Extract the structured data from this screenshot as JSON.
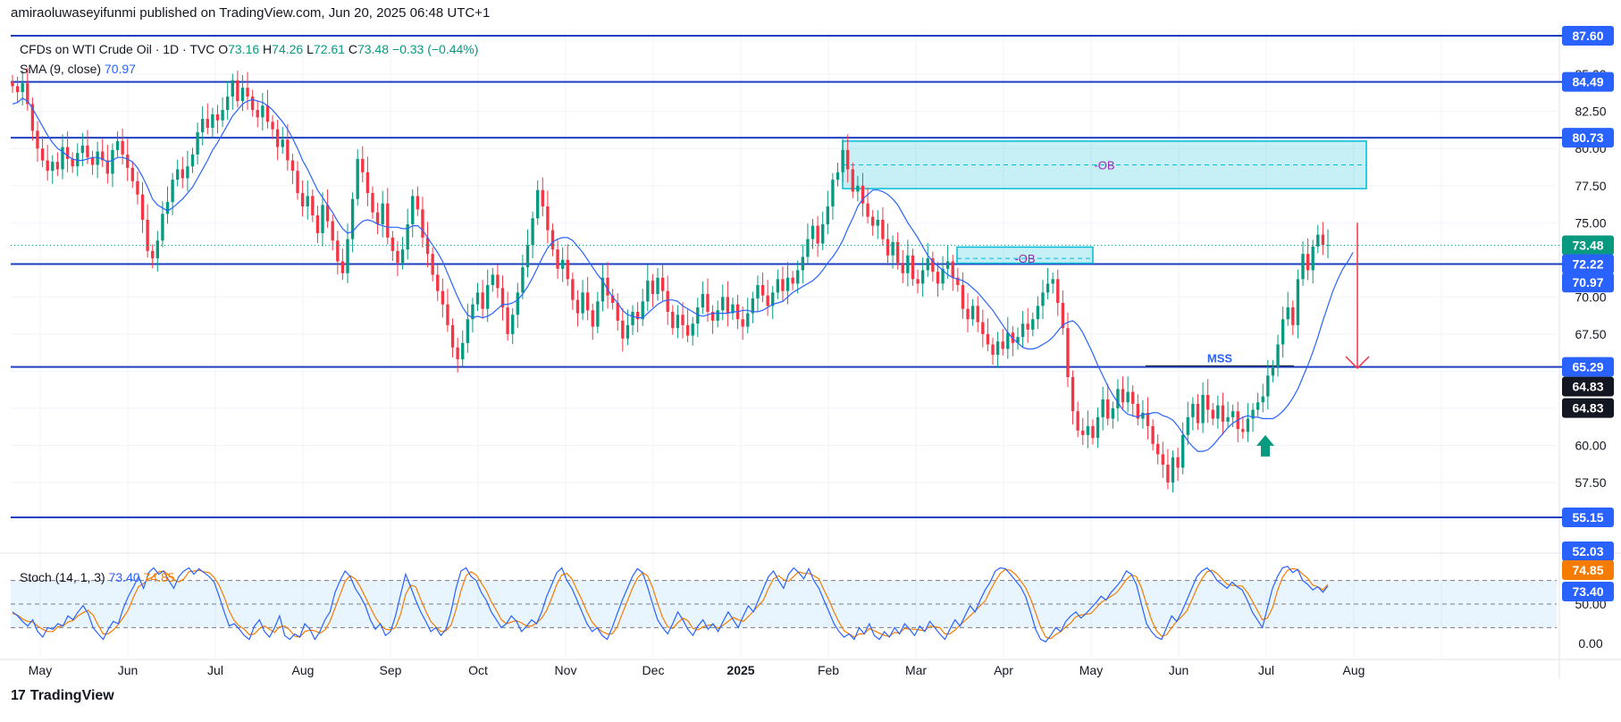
{
  "header": {
    "published": "amiraoluwaseyifunmi published on TradingView.com, Jun 20, 2025 06:48 UTC+1"
  },
  "legend": {
    "symbol": "CFDs on WTI Crude Oil · 1D · TVC",
    "open_label": "O",
    "open": "73.16",
    "high_label": "H",
    "high": "74.26",
    "low_label": "L",
    "low": "72.61",
    "close_label": "C",
    "close": "73.48",
    "change": "−0.33 (−0.44%)",
    "sma_label": "SMA (9, close)",
    "sma_value": "70.97"
  },
  "stoch_legend": {
    "label": "Stoch (14, 1, 3)",
    "k": "73.40",
    "d": "74.85"
  },
  "brand": {
    "logo": "17",
    "name": "TradingView"
  },
  "colors": {
    "up": "#089981",
    "down": "#f23645",
    "sma": "#2962ff",
    "hline": "#1e3fbf",
    "ob": "#00bcd4",
    "stoch_d": "#f57c00"
  },
  "chart_data": {
    "type": "candlestick",
    "ylim": [
      52.03,
      87.6
    ],
    "y_ticks": [
      "85.00",
      "82.50",
      "80.00",
      "77.50",
      "75.00",
      "72.50",
      "70.00",
      "67.50",
      "65.00",
      "62.50",
      "60.00",
      "57.50"
    ],
    "x_ticks": [
      "May",
      "Jun",
      "Jul",
      "Aug",
      "Sep",
      "Oct",
      "Nov",
      "Dec",
      "2025",
      "Feb",
      "Mar",
      "Apr",
      "May",
      "Jun",
      "Jul",
      "Aug"
    ],
    "horizontal_levels": [
      "87.60",
      "84.49",
      "80.73",
      "72.22",
      "65.29",
      "55.15"
    ],
    "price_labels": [
      {
        "text": "87.60",
        "style": "level"
      },
      {
        "text": "84.49",
        "style": "level"
      },
      {
        "text": "80.73",
        "style": "level"
      },
      {
        "text": "73.48",
        "style": "last"
      },
      {
        "text": "72.22",
        "style": "level"
      },
      {
        "text": "70.97",
        "style": "sma"
      },
      {
        "text": "65.29",
        "style": "level"
      },
      {
        "text": "64.83",
        "style": "dark"
      },
      {
        "text": "64.83",
        "style": "dark"
      },
      {
        "text": "55.15",
        "style": "level"
      },
      {
        "text": "52.03",
        "style": "level"
      }
    ],
    "annotations": {
      "ob1": {
        "label": "-OB",
        "top": 80.5,
        "bottom": 77.3,
        "mid": 78.9
      },
      "ob2": {
        "label": "-OB",
        "top": 73.0,
        "bottom": 72.2,
        "mid": 72.6
      },
      "mss": {
        "label": "MSS",
        "level": 65.0
      }
    },
    "closes": [
      84.2,
      83.8,
      84.4,
      83.0,
      81.2,
      80.0,
      79.2,
      78.5,
      79.1,
      78.6,
      80.1,
      79.3,
      78.8,
      79.7,
      80.2,
      79.4,
      78.9,
      79.8,
      79.2,
      78.3,
      79.9,
      80.5,
      79.6,
      78.7,
      77.8,
      76.9,
      75.2,
      73.1,
      72.6,
      73.8,
      75.6,
      76.4,
      77.9,
      78.6,
      78.0,
      78.8,
      79.6,
      81.1,
      82.0,
      81.4,
      82.3,
      81.9,
      82.6,
      83.5,
      84.6,
      83.2,
      84.1,
      83.5,
      82.6,
      82.1,
      82.9,
      81.8,
      81.3,
      80.1,
      80.6,
      79.2,
      78.5,
      77.0,
      76.1,
      76.8,
      75.5,
      74.3,
      76.2,
      75.1,
      73.8,
      72.4,
      71.6,
      73.9,
      76.6,
      79.3,
      78.4,
      77.0,
      75.7,
      74.9,
      76.3,
      74.0,
      73.1,
      72.3,
      73.2,
      74.9,
      76.8,
      75.9,
      74.0,
      72.9,
      71.5,
      70.4,
      69.5,
      68.1,
      66.6,
      65.8,
      66.9,
      68.5,
      69.5,
      70.3,
      69.2,
      70.8,
      71.5,
      70.6,
      69.3,
      67.5,
      68.8,
      70.3,
      72.0,
      73.5,
      75.3,
      77.2,
      76.1,
      74.5,
      73.2,
      71.9,
      72.5,
      71.2,
      69.8,
      68.9,
      70.3,
      69.1,
      68.0,
      69.7,
      71.3,
      70.1,
      69.6,
      68.4,
      67.2,
      68.1,
      69.0,
      68.5,
      69.7,
      71.1,
      70.2,
      71.3,
      70.4,
      69.0,
      67.9,
      68.8,
      68.1,
      67.4,
      68.2,
      69.3,
      70.2,
      69.0,
      68.4,
      69.1,
      70.0,
      68.9,
      69.5,
      68.5,
      68.0,
      68.9,
      69.9,
      70.8,
      70.1,
      69.4,
      70.3,
      71.2,
      70.4,
      71.3,
      70.9,
      71.8,
      72.7,
      73.9,
      74.8,
      73.6,
      74.9,
      76.1,
      77.9,
      78.4,
      79.9,
      78.6,
      77.1,
      77.5,
      76.3,
      75.4,
      74.8,
      75.2,
      73.9,
      72.8,
      73.7,
      72.3,
      71.6,
      72.8,
      71.2,
      70.9,
      71.8,
      72.6,
      71.7,
      70.9,
      71.9,
      72.4,
      71.3,
      70.8,
      69.2,
      68.5,
      69.4,
      68.3,
      67.5,
      66.8,
      66.1,
      67.0,
      66.5,
      67.6,
      66.9,
      67.3,
      68.2,
      67.8,
      68.5,
      69.4,
      70.3,
      70.9,
      71.2,
      69.6,
      67.9,
      64.6,
      62.3,
      61.0,
      60.7,
      61.3,
      60.5,
      61.9,
      63.1,
      61.8,
      62.5,
      63.8,
      62.9,
      63.6,
      62.8,
      61.8,
      62.2,
      61.3,
      60.1,
      59.4,
      58.7,
      57.5,
      59.2,
      58.5,
      60.7,
      61.9,
      62.8,
      61.5,
      63.4,
      62.4,
      61.8,
      62.7,
      61.6,
      61.9,
      62.3,
      61.1,
      60.9,
      61.8,
      62.4,
      62.9,
      63.3,
      64.7,
      65.3,
      66.8,
      68.5,
      69.3,
      68.1,
      71.2,
      72.9,
      71.8,
      73.4,
      74.2,
      73.5,
      73.5
    ],
    "sma": [
      83.0,
      83.1,
      83.4,
      83.2,
      82.7,
      82.1,
      81.5,
      80.9,
      80.4,
      80.0,
      79.8,
      79.5,
      79.3,
      79.2,
      79.2,
      79.3,
      79.4,
      79.4,
      79.3,
      79.1,
      79.2,
      79.4,
      79.4,
      79.3,
      79.1,
      78.7,
      78.1,
      77.4,
      76.6,
      76.2,
      76.0,
      75.8,
      76.0,
      76.3,
      76.6,
      77.0,
      77.4,
      78.0,
      78.6,
      79.2,
      79.9,
      80.4,
      81.0,
      81.6,
      82.2,
      82.6,
      83.0,
      83.2,
      83.3,
      83.2,
      83.1,
      82.9,
      82.6,
      82.2,
      81.8,
      81.3,
      80.7,
      80.0,
      79.2,
      78.6,
      77.9,
      77.2,
      76.7,
      76.2,
      75.7,
      75.1,
      74.6,
      74.3,
      74.4,
      74.8,
      75.1,
      75.2,
      75.1,
      74.9,
      74.8,
      74.7,
      74.7,
      74.7,
      74.6,
      74.6,
      74.8,
      74.8,
      74.5,
      74.0,
      73.5,
      73.0,
      72.4,
      71.6,
      70.8,
      70.0,
      69.3,
      68.8,
      68.6,
      68.7,
      68.6,
      68.7,
      68.9,
      69.2,
      69.5,
      69.5,
      69.6,
      69.8,
      70.2,
      70.7,
      71.3,
      72.0,
      72.7,
      73.3,
      73.7,
      73.9,
      74.0,
      74.0,
      73.8,
      73.4,
      73.0,
      72.5,
      72.0,
      71.5,
      71.1,
      70.5,
      70.0,
      69.6,
      69.1,
      68.8,
      68.7,
      68.6,
      68.6,
      68.9,
      69.2,
      69.5,
      69.7,
      69.8,
      69.8,
      69.7,
      69.4,
      69.2,
      69.0,
      68.8,
      68.7,
      68.8,
      68.9,
      68.9,
      68.9,
      68.9,
      69.0,
      69.0,
      69.1,
      69.1,
      69.0,
      69.0,
      69.1,
      69.3,
      69.5,
      69.6,
      69.7,
      70.0,
      70.3,
      70.5,
      70.7,
      70.9,
      71.1,
      71.4,
      71.8,
      72.3,
      72.7,
      73.2,
      73.8,
      74.6,
      75.3,
      76.1,
      76.6,
      76.9,
      77.2,
      77.2,
      77.1,
      76.9,
      76.6,
      76.2,
      75.6,
      75.0,
      74.5,
      74.0,
      73.4,
      72.8,
      72.4,
      72.1,
      71.8,
      71.5,
      71.3,
      71.2,
      71.1,
      70.9,
      70.6,
      70.3,
      69.9,
      69.5,
      69.1,
      68.6,
      68.1,
      67.6,
      67.2,
      66.9,
      66.6,
      66.5,
      66.5,
      66.6,
      66.8,
      67.0,
      67.3,
      67.7,
      68.1,
      68.3,
      68.4,
      68.1,
      67.6,
      66.9,
      66.2,
      65.4,
      64.7,
      64.0,
      63.4,
      62.9,
      62.4,
      62.1,
      62.0,
      61.9,
      62.1,
      62.1,
      62.2,
      62.2,
      62.0,
      61.9,
      61.7,
      61.3,
      60.8,
      60.3,
      59.9,
      59.6,
      59.6,
      59.7,
      60.0,
      60.4,
      60.8,
      61.2,
      61.5,
      61.7,
      61.9,
      62.0,
      61.9,
      61.9,
      61.8,
      61.8,
      61.8,
      62.0,
      62.3,
      62.7,
      63.2,
      63.8,
      64.6,
      65.4,
      66.3,
      67.3,
      68.4,
      69.4,
      70.4,
      71.2,
      71.9,
      72.4,
      73.0
    ],
    "stoch_k": [
      40,
      35,
      28,
      22,
      30,
      15,
      8,
      20,
      18,
      25,
      22,
      35,
      30,
      40,
      48,
      38,
      20,
      12,
      5,
      18,
      28,
      25,
      45,
      60,
      72,
      85,
      70,
      90,
      96,
      88,
      92,
      80,
      70,
      85,
      92,
      96,
      88,
      95,
      90,
      85,
      78,
      60,
      40,
      22,
      25,
      18,
      10,
      5,
      22,
      30,
      15,
      8,
      20,
      35,
      10,
      5,
      12,
      8,
      25,
      18,
      5,
      15,
      30,
      40,
      65,
      80,
      92,
      85,
      70,
      60,
      48,
      30,
      18,
      25,
      10,
      15,
      35,
      62,
      88,
      72,
      55,
      40,
      28,
      15,
      20,
      10,
      18,
      40,
      70,
      92,
      96,
      85,
      80,
      65,
      55,
      40,
      30,
      20,
      25,
      35,
      28,
      15,
      22,
      30,
      25,
      40,
      60,
      75,
      90,
      96,
      80,
      70,
      55,
      40,
      25,
      15,
      20,
      10,
      5,
      20,
      38,
      55,
      70,
      85,
      95,
      90,
      72,
      50,
      30,
      20,
      12,
      25,
      40,
      30,
      18,
      10,
      22,
      30,
      18,
      25,
      15,
      28,
      40,
      30,
      20,
      35,
      48,
      40,
      55,
      70,
      85,
      92,
      80,
      70,
      88,
      96,
      90,
      82,
      95,
      80,
      70,
      55,
      40,
      25,
      15,
      8,
      12,
      5,
      20,
      12,
      25,
      10,
      5,
      15,
      8,
      20,
      12,
      25,
      18,
      10,
      22,
      15,
      28,
      20,
      12,
      5,
      18,
      30,
      22,
      35,
      48,
      40,
      55,
      68,
      78,
      92,
      96,
      95,
      88,
      80,
      72,
      60,
      40,
      18,
      5,
      2,
      10,
      20,
      15,
      28,
      35,
      40,
      32,
      38,
      45,
      52,
      60,
      55,
      65,
      72,
      80,
      92,
      88,
      75,
      50,
      25,
      15,
      8,
      5,
      20,
      35,
      28,
      40,
      55,
      70,
      85,
      92,
      96,
      90,
      80,
      75,
      70,
      78,
      72,
      68,
      55,
      40,
      30,
      20,
      45,
      70,
      85,
      96,
      98,
      90,
      94,
      80,
      75,
      68,
      72,
      65,
      73
    ],
    "stoch_d": [
      38,
      36,
      31,
      28,
      27,
      22,
      18,
      15,
      15,
      21,
      22,
      27,
      29,
      35,
      39,
      42,
      36,
      23,
      12,
      12,
      17,
      24,
      33,
      43,
      59,
      72,
      76,
      82,
      85,
      91,
      92,
      87,
      81,
      78,
      82,
      91,
      92,
      93,
      91,
      90,
      84,
      74,
      59,
      41,
      29,
      22,
      18,
      11,
      12,
      19,
      22,
      18,
      14,
      21,
      22,
      17,
      9,
      8,
      15,
      17,
      16,
      13,
      17,
      28,
      45,
      62,
      79,
      86,
      82,
      72,
      59,
      46,
      33,
      24,
      18,
      17,
      20,
      37,
      62,
      74,
      72,
      56,
      41,
      28,
      21,
      15,
      16,
      23,
      43,
      67,
      86,
      91,
      87,
      77,
      67,
      53,
      42,
      30,
      25,
      27,
      29,
      26,
      22,
      22,
      26,
      32,
      42,
      58,
      75,
      87,
      89,
      82,
      68,
      55,
      40,
      27,
      20,
      15,
      12,
      12,
      21,
      38,
      54,
      70,
      83,
      90,
      86,
      71,
      51,
      33,
      21,
      19,
      26,
      32,
      29,
      19,
      17,
      21,
      23,
      24,
      19,
      23,
      28,
      33,
      30,
      28,
      34,
      41,
      48,
      55,
      70,
      82,
      86,
      81,
      79,
      85,
      91,
      89,
      89,
      86,
      82,
      68,
      55,
      40,
      27,
      16,
      12,
      8,
      12,
      12,
      19,
      16,
      13,
      10,
      9,
      14,
      13,
      19,
      18,
      18,
      17,
      16,
      22,
      21,
      20,
      12,
      12,
      17,
      23,
      29,
      35,
      41,
      48,
      54,
      67,
      79,
      89,
      94,
      93,
      88,
      80,
      71,
      57,
      39,
      21,
      8,
      6,
      11,
      15,
      21,
      26,
      34,
      36,
      37,
      38,
      45,
      52,
      56,
      60,
      64,
      72,
      81,
      87,
      85,
      71,
      50,
      30,
      16,
      9,
      11,
      20,
      28,
      34,
      41,
      55,
      70,
      82,
      91,
      93,
      89,
      82,
      75,
      74,
      73,
      73,
      65,
      54,
      42,
      30,
      32,
      45,
      67,
      84,
      93,
      95,
      94,
      88,
      83,
      74,
      72,
      68,
      74.85
    ]
  }
}
